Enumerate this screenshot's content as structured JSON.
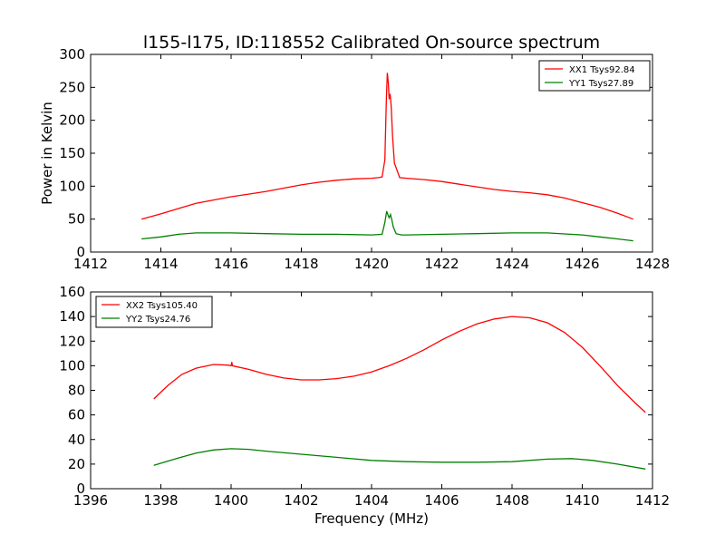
{
  "chart_data": [
    {
      "type": "line",
      "title": "l155-l175, ID:118552 Calibrated On-source spectrum",
      "xlabel": "",
      "ylabel": "Power in Kelvin",
      "xlim": [
        1412,
        1428
      ],
      "ylim": [
        0,
        300
      ],
      "xticks": [
        1412,
        1414,
        1416,
        1418,
        1420,
        1422,
        1424,
        1426,
        1428
      ],
      "yticks": [
        0,
        50,
        100,
        150,
        200,
        250,
        300
      ],
      "grid": false,
      "legend": "top-right",
      "series": [
        {
          "name": "XX1 Tsys92.84",
          "color": "#ff0000",
          "points": [
            [
              1413.45,
              50
            ],
            [
              1414,
              58
            ],
            [
              1414.5,
              66
            ],
            [
              1415,
              74
            ],
            [
              1415.5,
              79
            ],
            [
              1416,
              84
            ],
            [
              1416.5,
              88
            ],
            [
              1417,
              92
            ],
            [
              1417.5,
              97
            ],
            [
              1418,
              102
            ],
            [
              1418.5,
              106
            ],
            [
              1419,
              109
            ],
            [
              1419.5,
              111
            ],
            [
              1420,
              112
            ],
            [
              1420.2,
              113
            ],
            [
              1420.3,
              114
            ],
            [
              1420.38,
              140
            ],
            [
              1420.42,
              230
            ],
            [
              1420.45,
              272
            ],
            [
              1420.48,
              255
            ],
            [
              1420.5,
              232
            ],
            [
              1420.53,
              240
            ],
            [
              1420.56,
              220
            ],
            [
              1420.6,
              175
            ],
            [
              1420.65,
              135
            ],
            [
              1420.72,
              125
            ],
            [
              1420.8,
              113
            ],
            [
              1421,
              112
            ],
            [
              1421.5,
              110
            ],
            [
              1422,
              107
            ],
            [
              1422.5,
              103
            ],
            [
              1423,
              99
            ],
            [
              1423.5,
              95
            ],
            [
              1424,
              92
            ],
            [
              1424.5,
              90
            ],
            [
              1425,
              87
            ],
            [
              1425.5,
              82
            ],
            [
              1426,
              75
            ],
            [
              1426.5,
              68
            ],
            [
              1427,
              59
            ],
            [
              1427.45,
              50
            ]
          ]
        },
        {
          "name": "YY1 Tsys27.89",
          "color": "#008000",
          "points": [
            [
              1413.45,
              20
            ],
            [
              1414,
              23
            ],
            [
              1414.5,
              27
            ],
            [
              1415,
              29
            ],
            [
              1416,
              29
            ],
            [
              1417,
              28
            ],
            [
              1418,
              27
            ],
            [
              1419,
              27
            ],
            [
              1420,
              26
            ],
            [
              1420.3,
              27
            ],
            [
              1420.38,
              45
            ],
            [
              1420.43,
              62
            ],
            [
              1420.47,
              56
            ],
            [
              1420.5,
              52
            ],
            [
              1420.54,
              57
            ],
            [
              1420.58,
              48
            ],
            [
              1420.62,
              38
            ],
            [
              1420.7,
              28
            ],
            [
              1420.85,
              26
            ],
            [
              1421,
              26
            ],
            [
              1422,
              27
            ],
            [
              1423,
              28
            ],
            [
              1424,
              29
            ],
            [
              1425,
              29
            ],
            [
              1426,
              26
            ],
            [
              1426.5,
              23
            ],
            [
              1427,
              20
            ],
            [
              1427.45,
              17
            ]
          ]
        }
      ]
    },
    {
      "type": "line",
      "title": "",
      "xlabel": "Frequency (MHz)",
      "ylabel": "",
      "xlim": [
        1396,
        1412
      ],
      "ylim": [
        0,
        160
      ],
      "xticks": [
        1396,
        1398,
        1400,
        1402,
        1404,
        1406,
        1408,
        1410,
        1412
      ],
      "yticks": [
        0,
        20,
        40,
        60,
        80,
        100,
        120,
        140,
        160
      ],
      "grid": false,
      "legend": "top-left",
      "series": [
        {
          "name": "XX2 Tsys105.40",
          "color": "#ff0000",
          "points": [
            [
              1397.8,
              73
            ],
            [
              1398.2,
              84
            ],
            [
              1398.6,
              93
            ],
            [
              1399,
              98
            ],
            [
              1399.5,
              101
            ],
            [
              1399.9,
              100.5
            ],
            [
              1400,
              100
            ],
            [
              1400.02,
              103
            ],
            [
              1400.04,
              100
            ],
            [
              1400.5,
              97
            ],
            [
              1401,
              93
            ],
            [
              1401.5,
              90
            ],
            [
              1402,
              88.5
            ],
            [
              1402.5,
              88.5
            ],
            [
              1403,
              89.5
            ],
            [
              1403.5,
              91.5
            ],
            [
              1404,
              95
            ],
            [
              1404.5,
              100
            ],
            [
              1405,
              106
            ],
            [
              1405.5,
              113
            ],
            [
              1406,
              121
            ],
            [
              1406.5,
              128
            ],
            [
              1407,
              134
            ],
            [
              1407.5,
              138
            ],
            [
              1408,
              140
            ],
            [
              1408.5,
              139
            ],
            [
              1409,
              135
            ],
            [
              1409.5,
              127
            ],
            [
              1410,
              115
            ],
            [
              1410.5,
              100
            ],
            [
              1411,
              84
            ],
            [
              1411.5,
              70
            ],
            [
              1411.8,
              62
            ]
          ]
        },
        {
          "name": "YY2 Tsys24.76",
          "color": "#008000",
          "points": [
            [
              1397.8,
              19
            ],
            [
              1398.5,
              25
            ],
            [
              1399,
              29
            ],
            [
              1399.5,
              31.5
            ],
            [
              1400,
              32.5
            ],
            [
              1400.5,
              32
            ],
            [
              1401,
              30.5
            ],
            [
              1402,
              28
            ],
            [
              1403,
              25.5
            ],
            [
              1404,
              23
            ],
            [
              1405,
              22
            ],
            [
              1406,
              21.5
            ],
            [
              1407,
              21.5
            ],
            [
              1408,
              22
            ],
            [
              1409,
              24
            ],
            [
              1409.7,
              24.5
            ],
            [
              1410.3,
              23
            ],
            [
              1411,
              20
            ],
            [
              1411.8,
              16
            ]
          ]
        }
      ]
    }
  ]
}
